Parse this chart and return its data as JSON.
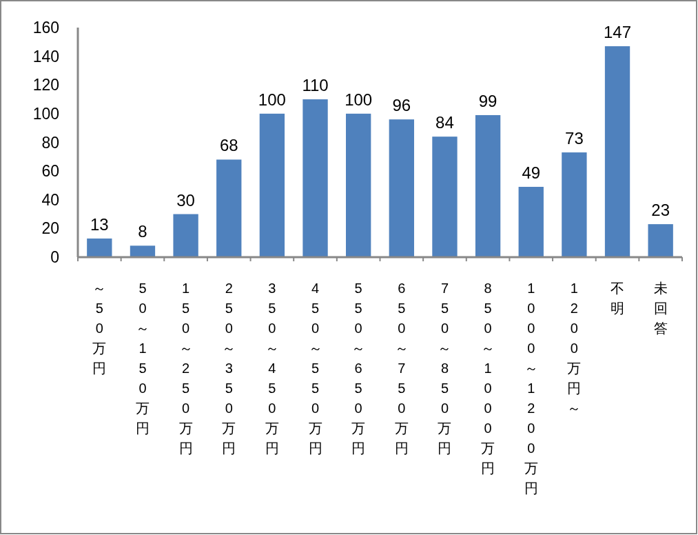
{
  "chart_data": {
    "type": "bar",
    "categories": [
      "～50万円",
      "50～150万円",
      "150～250万円",
      "250～350万円",
      "350～450万円",
      "450～550万円",
      "550～650万円",
      "650～750万円",
      "750～850万円",
      "850～1000万円",
      "1000～1200万円",
      "1200万円～",
      "不明",
      "未回答"
    ],
    "values": [
      13,
      8,
      30,
      68,
      100,
      110,
      100,
      96,
      84,
      99,
      49,
      73,
      147,
      23
    ],
    "color": "#4f81bd",
    "ylim": [
      0,
      160
    ],
    "yticks": [
      0,
      20,
      40,
      60,
      80,
      100,
      120,
      140,
      160
    ],
    "data_labels": true,
    "grid": false
  }
}
